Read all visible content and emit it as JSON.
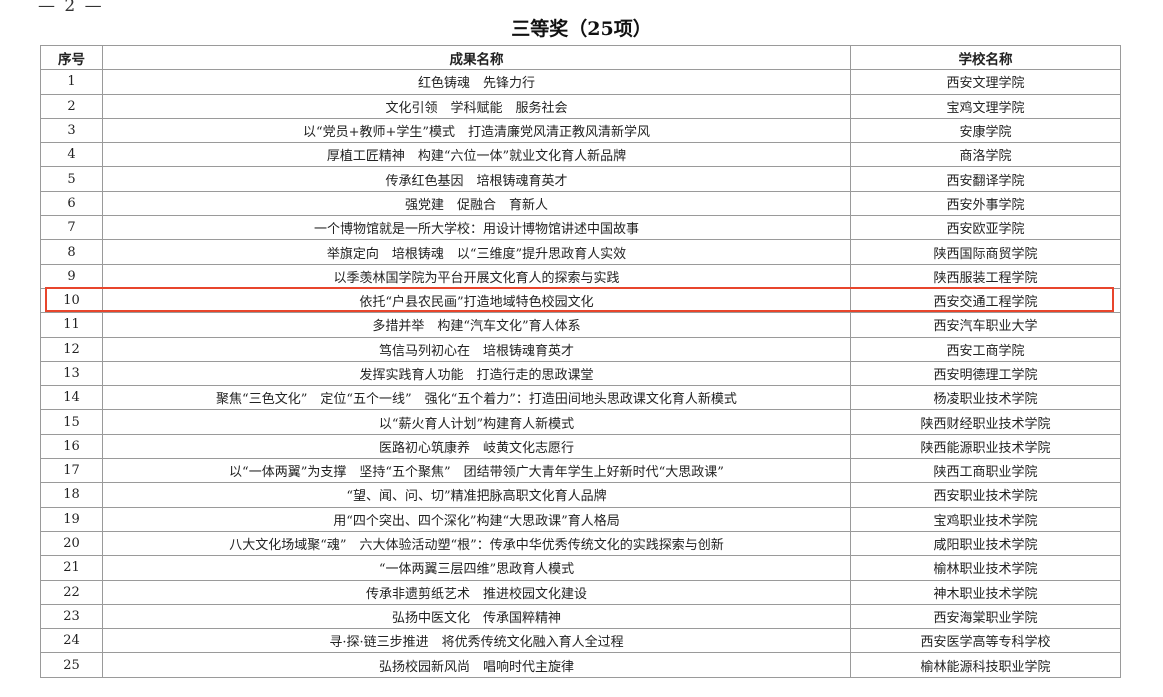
{
  "page_number": "— 2 —",
  "title": "三等奖（25项）",
  "table": {
    "headers": [
      "序号",
      "成果名称",
      "学校名称"
    ],
    "rows": [
      [
        "1",
        "红色铸魂　先锋力行",
        "西安文理学院"
      ],
      [
        "2",
        "文化引领　学科赋能　服务社会",
        "宝鸡文理学院"
      ],
      [
        "3",
        "以“党员+教师+学生”模式　打造清廉党风清正教风清新学风",
        "安康学院"
      ],
      [
        "4",
        "厚植工匠精神　构建“六位一体”就业文化育人新品牌",
        "商洛学院"
      ],
      [
        "5",
        "传承红色基因　培根铸魂育英才",
        "西安翻译学院"
      ],
      [
        "6",
        "强党建　促融合　育新人",
        "西安外事学院"
      ],
      [
        "7",
        "一个博物馆就是一所大学校：用设计博物馆讲述中国故事",
        "西安欧亚学院"
      ],
      [
        "8",
        "举旗定向　培根铸魂　以“三维度”提升思政育人实效",
        "陕西国际商贸学院"
      ],
      [
        "9",
        "以季羡林国学院为平台开展文化育人的探索与实践",
        "陕西服装工程学院"
      ],
      [
        "10",
        "依托“户县农民画”打造地域特色校园文化",
        "西安交通工程学院"
      ],
      [
        "11",
        "多措并举　构建“汽车文化”育人体系",
        "西安汽车职业大学"
      ],
      [
        "12",
        "笃信马列初心在　培根铸魂育英才",
        "西安工商学院"
      ],
      [
        "13",
        "发挥实践育人功能　打造行走的思政课堂",
        "西安明德理工学院"
      ],
      [
        "14",
        "聚焦“三色文化”　定位“五个一线”　强化“五个着力”：打造田间地头思政课文化育人新模式",
        "杨凌职业技术学院"
      ],
      [
        "15",
        "以“薪火育人计划”构建育人新模式",
        "陕西财经职业技术学院"
      ],
      [
        "16",
        "医路初心筑康养　岐黄文化志愿行",
        "陕西能源职业技术学院"
      ],
      [
        "17",
        "以“一体两翼”为支撑　坚持“五个聚焦”　团结带领广大青年学生上好新时代“大思政课”",
        "陕西工商职业学院"
      ],
      [
        "18",
        "“望、闻、问、切”精准把脉高职文化育人品牌",
        "西安职业技术学院"
      ],
      [
        "19",
        "用“四个突出、四个深化”构建“大思政课”育人格局",
        "宝鸡职业技术学院"
      ],
      [
        "20",
        "八大文化场域聚“魂”　六大体验活动塑“根”：传承中华优秀传统文化的实践探索与创新",
        "咸阳职业技术学院"
      ],
      [
        "21",
        "“一体两翼三层四维”思政育人模式",
        "榆林职业技术学院"
      ],
      [
        "22",
        "传承非遗剪纸艺术　推进校园文化建设",
        "神木职业技术学院"
      ],
      [
        "23",
        "弘扬中医文化　传承国粹精神",
        "西安海棠职业学院"
      ],
      [
        "24",
        "寻·探·链三步推进　将优秀传统文化融入育人全过程",
        "西安医学高等专科学校"
      ],
      [
        "25",
        "弘扬校园新风尚　唱响时代主旋律",
        "榆林能源科技职业学院"
      ]
    ]
  },
  "highlight_color": "#e8452c"
}
